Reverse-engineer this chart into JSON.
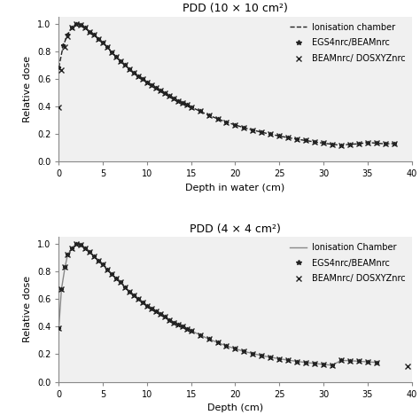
{
  "title1": "PDD (10 × 10 cm²)",
  "title2": "PDD (4 × 4 cm²)",
  "xlabel1": "Depth in water (cm)",
  "xlabel2": "Depth (cm)",
  "ylabel": "Relative dose",
  "legend1": [
    "Ionisation chamber",
    "EGS4nrc/BEAMnrc",
    "BEAMnrc/ DOSXYZnrc"
  ],
  "legend2": [
    "Ionisation Chamber",
    "EGS4nrc/BEAMnrc",
    "BEAMnrc/ DOSXYZnrc"
  ],
  "line_color": "#333333",
  "marker_color": "#222222",
  "solid_color": "#888888",
  "xlim": [
    0,
    40
  ],
  "ylim": [
    0,
    1.05
  ],
  "yticks": [
    0,
    0.2,
    0.4,
    0.6,
    0.8,
    1.0
  ],
  "xticks": [
    0,
    5,
    10,
    15,
    20,
    25,
    30,
    35,
    40
  ],
  "bg_color": "#f0f0f0",
  "pdd10_dashed_x": [
    0,
    0.5,
    1.0,
    1.5,
    2.0,
    2.5,
    3.0,
    3.5,
    4.0,
    4.5,
    5.0,
    5.5,
    6.0,
    6.5,
    7.0,
    7.5,
    8.0,
    8.5,
    9.0,
    9.5,
    10.0,
    10.5,
    11.0,
    11.5,
    12.0,
    12.5,
    13.0,
    13.5,
    14.0,
    14.5,
    15.0,
    16.0,
    17.0,
    18.0,
    19.0,
    20.0,
    21.0,
    22.0,
    23.0,
    24.0,
    25.0,
    26.0,
    27.0,
    28.0,
    29.0,
    30.0,
    31.0,
    32.0,
    33.0,
    34.0,
    35.0,
    36.0,
    37.0,
    38.0
  ],
  "pdd10_dashed_y": [
    0.68,
    0.84,
    0.92,
    0.97,
    1.0,
    0.99,
    0.97,
    0.94,
    0.92,
    0.89,
    0.86,
    0.83,
    0.79,
    0.76,
    0.73,
    0.7,
    0.67,
    0.645,
    0.62,
    0.6,
    0.575,
    0.555,
    0.535,
    0.515,
    0.495,
    0.475,
    0.455,
    0.44,
    0.425,
    0.41,
    0.395,
    0.365,
    0.335,
    0.31,
    0.285,
    0.265,
    0.245,
    0.228,
    0.212,
    0.198,
    0.185,
    0.173,
    0.162,
    0.152,
    0.142,
    0.133,
    0.125,
    0.118,
    0.125,
    0.128,
    0.138,
    0.133,
    0.128,
    0.13
  ],
  "pdd10_dia_x": [
    0,
    0.5,
    1.0,
    1.5,
    2.0,
    2.5,
    3.0,
    3.5,
    4.0,
    4.5,
    5.0,
    5.5,
    6.0,
    6.5,
    7.0,
    7.5,
    8.0,
    8.5,
    9.0,
    9.5,
    10.0,
    10.5,
    11.0,
    11.5,
    12.0,
    12.5,
    13.0,
    13.5,
    14.0,
    14.5,
    15.0,
    16.0,
    17.0,
    18.0,
    19.0,
    20.0,
    21.0,
    22.0,
    23.0,
    24.0,
    25.0,
    26.0,
    27.0,
    28.0,
    29.0,
    30.0,
    31.0,
    32.0,
    33.0,
    34.0,
    35.0,
    36.0,
    37.0,
    38.0
  ],
  "pdd10_dia_y": [
    0.68,
    0.84,
    0.92,
    0.97,
    1.0,
    0.99,
    0.97,
    0.94,
    0.92,
    0.89,
    0.86,
    0.83,
    0.79,
    0.76,
    0.73,
    0.7,
    0.67,
    0.645,
    0.62,
    0.6,
    0.575,
    0.555,
    0.535,
    0.515,
    0.495,
    0.475,
    0.455,
    0.44,
    0.425,
    0.41,
    0.395,
    0.365,
    0.335,
    0.31,
    0.285,
    0.265,
    0.245,
    0.228,
    0.212,
    0.198,
    0.185,
    0.173,
    0.162,
    0.152,
    0.142,
    0.133,
    0.125,
    0.118,
    0.125,
    0.128,
    0.138,
    0.133,
    0.128,
    0.13
  ],
  "pdd10_x_x": [
    0.0,
    0.3,
    0.7,
    1.0,
    1.5,
    2.0,
    2.5,
    3.0,
    3.5,
    4.0,
    4.5,
    5.0,
    5.5,
    6.0,
    6.5,
    7.0,
    7.5,
    8.0,
    8.5,
    9.0,
    9.5,
    10.0,
    10.5,
    11.0,
    11.5,
    12.0,
    12.5,
    13.0,
    13.5,
    14.0,
    14.5,
    15.0,
    16.0,
    17.0,
    18.0,
    19.0,
    20.0,
    21.0,
    22.0,
    23.0,
    24.0,
    25.0,
    26.0,
    27.0,
    28.0,
    29.0,
    30.0,
    31.0,
    32.0,
    33.0,
    34.0,
    35.0,
    36.0,
    37.0,
    38.0
  ],
  "pdd10_x_y": [
    0.39,
    0.66,
    0.83,
    0.91,
    0.97,
    1.0,
    0.99,
    0.97,
    0.94,
    0.92,
    0.89,
    0.86,
    0.83,
    0.79,
    0.76,
    0.73,
    0.7,
    0.67,
    0.645,
    0.62,
    0.6,
    0.575,
    0.555,
    0.535,
    0.515,
    0.495,
    0.475,
    0.455,
    0.44,
    0.425,
    0.41,
    0.395,
    0.365,
    0.335,
    0.31,
    0.285,
    0.265,
    0.245,
    0.228,
    0.212,
    0.198,
    0.185,
    0.173,
    0.162,
    0.152,
    0.142,
    0.133,
    0.125,
    0.118,
    0.125,
    0.128,
    0.138,
    0.133,
    0.128,
    0.13
  ],
  "pdd4_solid_x": [
    0,
    0.3,
    0.7,
    1.0,
    1.5,
    2.0,
    2.5,
    3.0,
    3.5,
    4.0,
    4.5,
    5.0,
    5.5,
    6.0,
    6.5,
    7.0,
    7.5,
    8.0,
    8.5,
    9.0,
    9.5,
    10.0,
    10.5,
    11.0,
    11.5,
    12.0,
    12.5,
    13.0,
    13.5,
    14.0,
    14.5,
    15.0,
    16.0,
    17.0,
    18.0,
    19.0,
    20.0,
    21.0,
    22.0,
    23.0,
    24.0,
    25.0,
    26.0,
    27.0,
    28.0,
    29.0,
    30.0,
    31.0,
    32.0,
    33.0,
    34.0,
    35.0,
    36.0
  ],
  "pdd4_solid_y": [
    0.39,
    0.67,
    0.83,
    0.92,
    0.97,
    1.0,
    0.99,
    0.97,
    0.94,
    0.91,
    0.88,
    0.85,
    0.81,
    0.78,
    0.75,
    0.72,
    0.685,
    0.655,
    0.63,
    0.6,
    0.575,
    0.55,
    0.53,
    0.51,
    0.49,
    0.47,
    0.45,
    0.43,
    0.415,
    0.4,
    0.385,
    0.37,
    0.34,
    0.31,
    0.285,
    0.26,
    0.24,
    0.22,
    0.205,
    0.19,
    0.178,
    0.167,
    0.157,
    0.148,
    0.14,
    0.133,
    0.126,
    0.12,
    0.155,
    0.153,
    0.149,
    0.145,
    0.14
  ],
  "pdd4_dia_x": [
    0,
    0.3,
    0.7,
    1.0,
    1.5,
    2.0,
    2.5,
    3.0,
    3.5,
    4.0,
    4.5,
    5.0,
    5.5,
    6.0,
    6.5,
    7.0,
    7.5,
    8.0,
    8.5,
    9.0,
    9.5,
    10.0,
    10.5,
    11.0,
    11.5,
    12.0,
    12.5,
    13.0,
    13.5,
    14.0,
    14.5,
    15.0,
    16.0,
    17.0,
    18.0,
    19.0,
    20.0,
    21.0,
    22.0,
    23.0,
    24.0,
    25.0,
    26.0,
    27.0,
    28.0,
    29.0,
    30.0,
    31.0,
    32.0,
    33.0,
    34.0,
    35.0,
    36.0
  ],
  "pdd4_dia_y": [
    0.39,
    0.67,
    0.83,
    0.92,
    0.97,
    1.0,
    0.99,
    0.97,
    0.94,
    0.91,
    0.88,
    0.85,
    0.81,
    0.78,
    0.75,
    0.72,
    0.685,
    0.655,
    0.63,
    0.6,
    0.575,
    0.55,
    0.53,
    0.51,
    0.49,
    0.47,
    0.45,
    0.43,
    0.415,
    0.4,
    0.385,
    0.37,
    0.34,
    0.31,
    0.285,
    0.26,
    0.24,
    0.22,
    0.205,
    0.19,
    0.178,
    0.167,
    0.157,
    0.148,
    0.14,
    0.133,
    0.126,
    0.12,
    0.155,
    0.153,
    0.149,
    0.145,
    0.14
  ],
  "pdd4_x_x": [
    0,
    0.3,
    0.7,
    1.0,
    1.5,
    2.0,
    2.5,
    3.0,
    3.5,
    4.0,
    4.5,
    5.0,
    5.5,
    6.0,
    6.5,
    7.0,
    7.5,
    8.0,
    8.5,
    9.0,
    9.5,
    10.0,
    10.5,
    11.0,
    11.5,
    12.0,
    12.5,
    13.0,
    13.5,
    14.0,
    14.5,
    15.0,
    16.0,
    17.0,
    18.0,
    19.0,
    20.0,
    21.0,
    22.0,
    23.0,
    24.0,
    25.0,
    26.0,
    27.0,
    28.0,
    29.0,
    30.0,
    31.0,
    32.0,
    33.0,
    34.0,
    35.0,
    36.0,
    39.5
  ],
  "pdd4_x_y": [
    0.39,
    0.67,
    0.83,
    0.92,
    0.97,
    1.0,
    0.99,
    0.97,
    0.94,
    0.91,
    0.88,
    0.85,
    0.81,
    0.78,
    0.75,
    0.72,
    0.685,
    0.655,
    0.63,
    0.6,
    0.575,
    0.55,
    0.53,
    0.51,
    0.49,
    0.47,
    0.45,
    0.43,
    0.415,
    0.4,
    0.385,
    0.37,
    0.34,
    0.31,
    0.285,
    0.26,
    0.24,
    0.22,
    0.205,
    0.19,
    0.178,
    0.167,
    0.157,
    0.148,
    0.14,
    0.133,
    0.126,
    0.12,
    0.155,
    0.153,
    0.149,
    0.145,
    0.14,
    0.11
  ]
}
